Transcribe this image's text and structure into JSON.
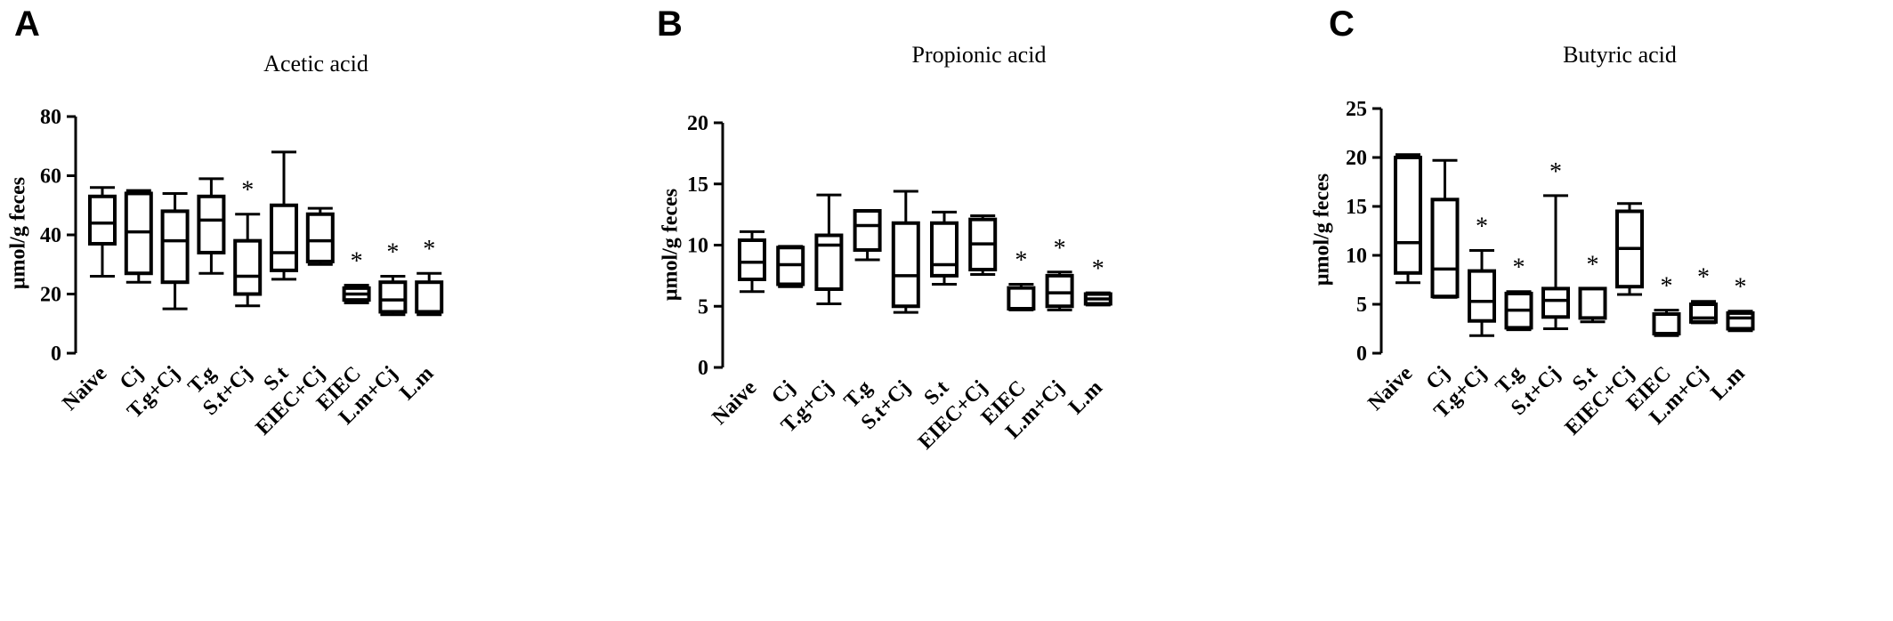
{
  "chart_data": [
    {
      "type": "box",
      "panel": "A",
      "title": "Acetic acid",
      "ylabel": "μmol/g feces",
      "ylim": [
        0,
        80
      ],
      "yticks": [
        0,
        20,
        40,
        60,
        80
      ],
      "categories": [
        "Naive",
        "Cj",
        "T.g+Cj",
        "T.g",
        "S.t+Cj",
        "S.t",
        "EIEC+Cj",
        "EIEC",
        "L.m+Cj",
        "L.m"
      ],
      "boxes": [
        {
          "min": 26,
          "q1": 37,
          "median": 44,
          "q3": 53,
          "max": 56,
          "sig": ""
        },
        {
          "min": 24,
          "q1": 27,
          "median": 41,
          "q3": 54,
          "max": 55,
          "sig": ""
        },
        {
          "min": 15,
          "q1": 24,
          "median": 38,
          "q3": 48,
          "max": 54,
          "sig": ""
        },
        {
          "min": 27,
          "q1": 34,
          "median": 45,
          "q3": 53,
          "max": 59,
          "sig": ""
        },
        {
          "min": 16,
          "q1": 20,
          "median": 26,
          "q3": 38,
          "max": 47,
          "sig": "*"
        },
        {
          "min": 25,
          "q1": 28,
          "median": 34,
          "q3": 50,
          "max": 68,
          "sig": ""
        },
        {
          "min": 30,
          "q1": 31,
          "median": 38,
          "q3": 47,
          "max": 49,
          "sig": ""
        },
        {
          "min": 17,
          "q1": 18,
          "median": 20,
          "q3": 22,
          "max": 23,
          "sig": "*"
        },
        {
          "min": 13,
          "q1": 14,
          "median": 18,
          "q3": 24,
          "max": 26,
          "sig": "*"
        },
        {
          "min": 13,
          "q1": 14,
          "median": 14,
          "q3": 24,
          "max": 27,
          "sig": "*"
        }
      ]
    },
    {
      "type": "box",
      "panel": "B",
      "title": "Propionic acid",
      "ylabel": "μmol/g feces",
      "ylim": [
        0,
        20
      ],
      "yticks": [
        0,
        5,
        10,
        15,
        20
      ],
      "categories": [
        "Naive",
        "Cj",
        "T.g+Cj",
        "T.g",
        "S.t+Cj",
        "S.t",
        "EIEC+Cj",
        "EIEC",
        "L.m+Cj",
        "L.m"
      ],
      "boxes": [
        {
          "min": 6.2,
          "q1": 7.2,
          "median": 8.6,
          "q3": 10.4,
          "max": 11.1,
          "sig": ""
        },
        {
          "min": 6.6,
          "q1": 6.8,
          "median": 8.4,
          "q3": 9.8,
          "max": 9.9,
          "sig": ""
        },
        {
          "min": 5.2,
          "q1": 6.4,
          "median": 10.0,
          "q3": 10.8,
          "max": 14.1,
          "sig": ""
        },
        {
          "min": 8.8,
          "q1": 9.6,
          "median": 11.6,
          "q3": 12.8,
          "max": 12.8,
          "sig": ""
        },
        {
          "min": 4.5,
          "q1": 5.0,
          "median": 7.5,
          "q3": 11.8,
          "max": 14.4,
          "sig": ""
        },
        {
          "min": 6.8,
          "q1": 7.5,
          "median": 8.4,
          "q3": 11.8,
          "max": 12.7,
          "sig": ""
        },
        {
          "min": 7.6,
          "q1": 8.0,
          "median": 10.1,
          "q3": 12.1,
          "max": 12.4,
          "sig": ""
        },
        {
          "min": 4.7,
          "q1": 4.8,
          "median": 4.8,
          "q3": 6.5,
          "max": 6.8,
          "sig": "*"
        },
        {
          "min": 4.7,
          "q1": 5.0,
          "median": 6.1,
          "q3": 7.5,
          "max": 7.8,
          "sig": "*"
        },
        {
          "min": 5.1,
          "q1": 5.2,
          "median": 5.6,
          "q3": 6.0,
          "max": 6.1,
          "sig": "*"
        }
      ]
    },
    {
      "type": "box",
      "panel": "C",
      "title": "Butyric acid",
      "ylabel": "μmol/g feces",
      "ylim": [
        0,
        25
      ],
      "yticks": [
        0,
        5,
        10,
        15,
        20,
        25
      ],
      "categories": [
        "Naive",
        "Cj",
        "T.g+Cj",
        "T.g",
        "S.t+Cj",
        "S.t",
        "EIEC+Cj",
        "EIEC",
        "L.m+Cj",
        "L.m"
      ],
      "boxes": [
        {
          "min": 7.2,
          "q1": 8.2,
          "median": 11.3,
          "q3": 20.0,
          "max": 20.3,
          "sig": ""
        },
        {
          "min": 5.7,
          "q1": 5.8,
          "median": 8.6,
          "q3": 15.7,
          "max": 19.7,
          "sig": ""
        },
        {
          "min": 1.8,
          "q1": 3.3,
          "median": 5.3,
          "q3": 8.4,
          "max": 10.5,
          "sig": "*"
        },
        {
          "min": 2.4,
          "q1": 2.6,
          "median": 4.4,
          "q3": 6.1,
          "max": 6.3,
          "sig": "*"
        },
        {
          "min": 2.5,
          "q1": 3.7,
          "median": 5.4,
          "q3": 6.6,
          "max": 16.1,
          "sig": "*"
        },
        {
          "min": 3.2,
          "q1": 3.6,
          "median": 3.6,
          "q3": 6.6,
          "max": 6.6,
          "sig": "*"
        },
        {
          "min": 6.0,
          "q1": 6.8,
          "median": 10.7,
          "q3": 14.5,
          "max": 15.3,
          "sig": ""
        },
        {
          "min": 1.8,
          "q1": 2.0,
          "median": 2.0,
          "q3": 4.0,
          "max": 4.4,
          "sig": "*"
        },
        {
          "min": 3.1,
          "q1": 3.2,
          "median": 3.6,
          "q3": 5.0,
          "max": 5.3,
          "sig": "*"
        },
        {
          "min": 2.3,
          "q1": 2.5,
          "median": 3.6,
          "q3": 4.1,
          "max": 4.3,
          "sig": "*"
        }
      ]
    }
  ]
}
